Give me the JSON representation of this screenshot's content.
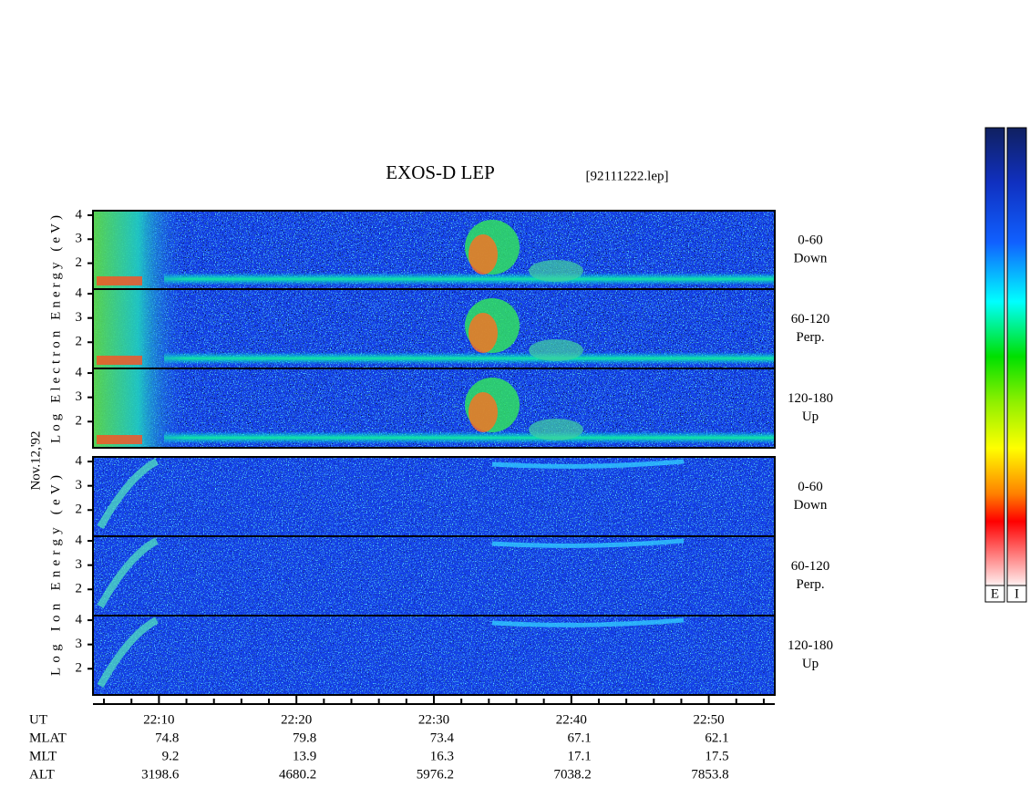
{
  "chart_data": {
    "type": "spectrogram",
    "title": "EXOS-D LEP",
    "subtitle": "[92111222.lep]",
    "date_label": "Nov.12,'92",
    "xlim": [
      1325.2,
      1374.8
    ],
    "xticks": [
      {
        "value": 1330,
        "label": "22:10"
      },
      {
        "value": 1340,
        "label": "22:20"
      },
      {
        "value": 1350,
        "label": "22:30"
      },
      {
        "value": 1360,
        "label": "22:40"
      },
      {
        "value": 1370,
        "label": "22:50"
      }
    ],
    "xminorticks": [
      1326,
      1328,
      1332,
      1334,
      1336,
      1338,
      1342,
      1344,
      1346,
      1348,
      1352,
      1354,
      1356,
      1358,
      1362,
      1364,
      1366,
      1368,
      1372,
      1374
    ],
    "ylim": [
      0.92,
      4.19
    ],
    "yticks": [
      2,
      3,
      4
    ],
    "groups": [
      {
        "ylabel": "Log Electron Energy (eV)",
        "panels": [
          {
            "label": [
              "0-60",
              "Down"
            ]
          },
          {
            "label": [
              "60-120",
              "Perp."
            ]
          },
          {
            "label": [
              "120-180",
              "Up"
            ]
          }
        ]
      },
      {
        "ylabel": "Log Ion Energy (eV)",
        "panels": [
          {
            "label": [
              "0-60",
              "Down"
            ]
          },
          {
            "label": [
              "60-120",
              "Perp."
            ]
          },
          {
            "label": [
              "120-180",
              "Up"
            ]
          }
        ]
      }
    ],
    "ephemeris": [
      {
        "name": "UT"
      },
      {
        "name": "MLAT",
        "values": [
          74.8,
          79.8,
          73.4,
          67.1,
          62.1
        ]
      },
      {
        "name": "MLT",
        "values": [
          9.2,
          13.9,
          16.3,
          17.1,
          17.5
        ]
      },
      {
        "name": "ALT",
        "values": [
          3198.6,
          4680.2,
          5976.2,
          7038.2,
          7853.8
        ]
      }
    ],
    "colorbars": [
      "E",
      "I"
    ]
  }
}
